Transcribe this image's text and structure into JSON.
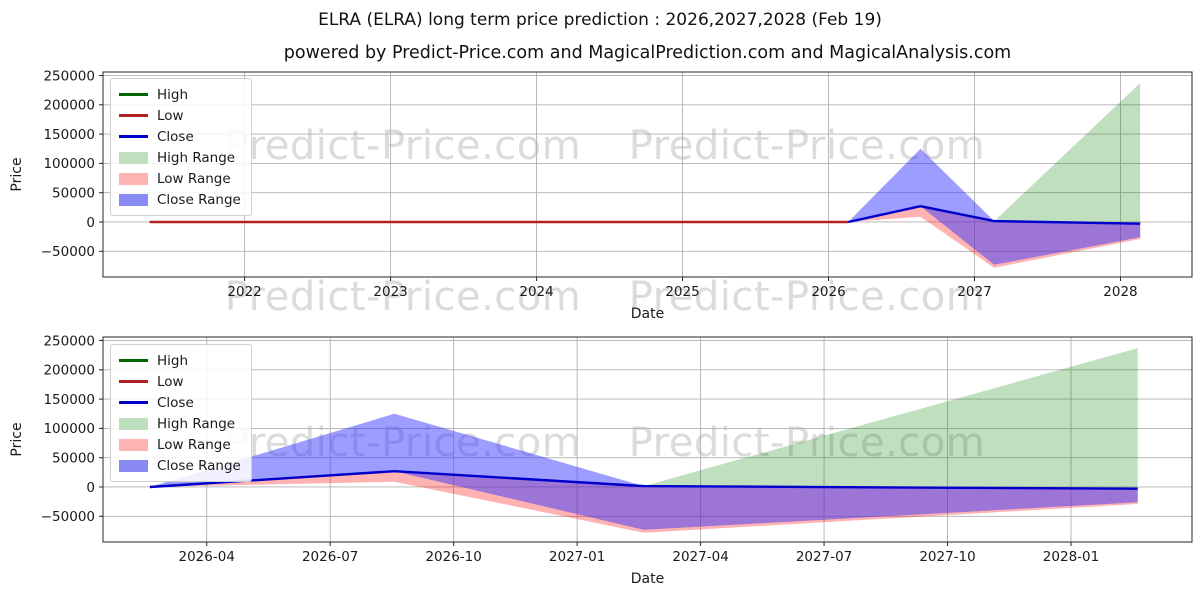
{
  "header": {
    "title": "ELRA (ELRA) long term price prediction : 2026,2027,2028 (Feb 19)",
    "subtitle": "powered by Predict-Price.com and MagicalPrediction.com and MagicalAnalysis.com"
  },
  "watermark": {
    "text": "Predict-Price.com",
    "color": "#dddddd"
  },
  "colors": {
    "high_line": "#006400",
    "low_line": "#b22222",
    "close_line": "#0000cd",
    "high_range_fill": "#bfdfbf",
    "low_range_fill": "#ffb3b3",
    "close_range_fill": "#8a8af5",
    "grid": "#b0b0b0",
    "spine": "#262626"
  },
  "chart_data": [
    {
      "type": "line",
      "title": "",
      "xlabel": "Date",
      "ylabel": "Price",
      "xlim": [
        2021.03,
        2028.49
      ],
      "ylim": [
        -93900,
        256000
      ],
      "grid": true,
      "legend_position": "upper-left",
      "x_ticks": {
        "values": [
          2022,
          2023,
          2024,
          2025,
          2026,
          2027,
          2028
        ],
        "labels": [
          "2022",
          "2023",
          "2024",
          "2025",
          "2026",
          "2027",
          "2028"
        ]
      },
      "y_ticks": {
        "values": [
          -50000,
          0,
          50000,
          100000,
          150000,
          200000,
          250000
        ],
        "labels": [
          "−50000",
          "0",
          "50000",
          "100000",
          "150000",
          "200000",
          "250000"
        ]
      },
      "series": [
        {
          "name": "High",
          "color": "#006400",
          "width": 1.8,
          "x": [
            2021.35,
            2026.135
          ],
          "y": [
            0,
            0
          ]
        },
        {
          "name": "Low",
          "color": "#b22222",
          "width": 2.4,
          "x": [
            2021.35,
            2026.135
          ],
          "y": [
            0,
            0
          ]
        },
        {
          "name": "Close",
          "color": "#0000cd",
          "width": 2.4,
          "x": [
            2026.135,
            2026.63,
            2027.135,
            2028.135
          ],
          "y": [
            0,
            27000,
            1500,
            -3000
          ]
        }
      ],
      "bands": [
        {
          "name": "High Range",
          "color": "#008000",
          "opacity": 0.25,
          "x": [
            2027.135,
            2028.135
          ],
          "upper": [
            1500,
            237000
          ],
          "lower": [
            1500,
            -3000
          ]
        },
        {
          "name": "Low Range",
          "color": "#ff0000",
          "opacity": 0.3,
          "x": [
            2026.135,
            2026.63,
            2027.135,
            2028.135
          ],
          "upper": [
            0,
            27000,
            1500,
            -3000
          ],
          "lower": [
            0,
            9000,
            -78000,
            -29000
          ]
        },
        {
          "name": "Close Range",
          "color": "#3333ff",
          "opacity": 0.48,
          "x": [
            2026.135,
            2026.63,
            2027.135,
            2028.135
          ],
          "upper": [
            0,
            125000,
            1500,
            -2000
          ],
          "lower": [
            0,
            27000,
            -73000,
            -26000
          ]
        }
      ],
      "legend": [
        {
          "label": "High",
          "swatch": "line",
          "color": "#006400"
        },
        {
          "label": "Low",
          "swatch": "line",
          "color": "#b22222"
        },
        {
          "label": "Close",
          "swatch": "line",
          "color": "#0000cd"
        },
        {
          "label": "High Range",
          "swatch": "patch",
          "color": "#bfdfbf"
        },
        {
          "label": "Low Range",
          "swatch": "patch",
          "color": "#ffb3b3"
        },
        {
          "label": "Close Range",
          "swatch": "patch",
          "color": "#8a8af5"
        }
      ]
    },
    {
      "type": "line",
      "title": "",
      "xlabel": "Date",
      "ylabel": "Price",
      "xlim": [
        2026.04,
        2028.245
      ],
      "ylim": [
        -93900,
        256000
      ],
      "grid": true,
      "legend_position": "upper-left",
      "x_ticks": {
        "values": [
          2026.25,
          2026.5,
          2026.75,
          2027.0,
          2027.25,
          2027.5,
          2027.75,
          2028.0
        ],
        "labels": [
          "2026-04",
          "2026-07",
          "2026-10",
          "2027-01",
          "2027-04",
          "2027-07",
          "2027-10",
          "2028-01"
        ]
      },
      "y_ticks": {
        "values": [
          -50000,
          0,
          50000,
          100000,
          150000,
          200000,
          250000
        ],
        "labels": [
          "−50000",
          "0",
          "50000",
          "100000",
          "150000",
          "200000",
          "250000"
        ]
      },
      "series": [
        {
          "name": "High",
          "color": "#006400",
          "width": 1.8,
          "x": [],
          "y": []
        },
        {
          "name": "Low",
          "color": "#b22222",
          "width": 2.4,
          "x": [],
          "y": []
        },
        {
          "name": "Close",
          "color": "#0000cd",
          "width": 2.4,
          "x": [
            2026.135,
            2026.63,
            2027.135,
            2028.135
          ],
          "y": [
            0,
            27000,
            1500,
            -3000
          ]
        }
      ],
      "bands": [
        {
          "name": "High Range",
          "color": "#008000",
          "opacity": 0.25,
          "x": [
            2027.135,
            2028.135
          ],
          "upper": [
            1500,
            237000
          ],
          "lower": [
            1500,
            -3000
          ]
        },
        {
          "name": "Low Range",
          "color": "#ff0000",
          "opacity": 0.3,
          "x": [
            2026.135,
            2026.63,
            2027.135,
            2028.135
          ],
          "upper": [
            0,
            27000,
            1500,
            -3000
          ],
          "lower": [
            0,
            9000,
            -78000,
            -29000
          ]
        },
        {
          "name": "Close Range",
          "color": "#3333ff",
          "opacity": 0.48,
          "x": [
            2026.135,
            2026.63,
            2027.135,
            2028.135
          ],
          "upper": [
            0,
            125000,
            1500,
            -2000
          ],
          "lower": [
            0,
            27000,
            -73000,
            -26000
          ]
        }
      ],
      "legend": [
        {
          "label": "High",
          "swatch": "line",
          "color": "#006400"
        },
        {
          "label": "Low",
          "swatch": "line",
          "color": "#b22222"
        },
        {
          "label": "Close",
          "swatch": "line",
          "color": "#0000cd"
        },
        {
          "label": "High Range",
          "swatch": "patch",
          "color": "#bfdfbf"
        },
        {
          "label": "Low Range",
          "swatch": "patch",
          "color": "#ffb3b3"
        },
        {
          "label": "Close Range",
          "swatch": "patch",
          "color": "#8a8af5"
        }
      ]
    }
  ]
}
